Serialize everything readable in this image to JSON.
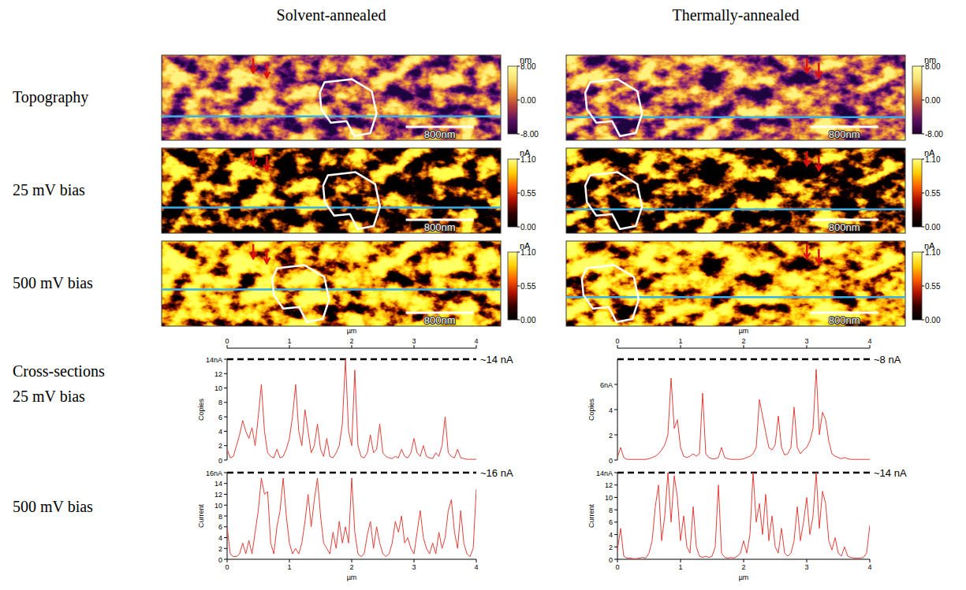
{
  "figure": {
    "columns": [
      "Solvent-annealed",
      "Thermally-annealed"
    ],
    "rows": [
      "Topography",
      "25 mV bias",
      "500 mV bias"
    ],
    "cross_section_title": "Cross-sections",
    "cross_section_rows": [
      "25 mV bias",
      "500 mV bias"
    ],
    "image_width": 4,
    "scale_bar": {
      "label": "800nm",
      "length": 0.8
    },
    "colorbars": [
      {
        "unit": "nm",
        "range": [
          -8,
          8
        ],
        "ticks": [
          {
            "value": 8,
            "label": "8.00"
          },
          {
            "value": 0,
            "label": "0.00"
          },
          {
            "value": -8,
            "label": "-8.00"
          }
        ]
      },
      {
        "unit": "nA",
        "range": [
          0,
          1.1
        ],
        "ticks": [
          {
            "value": 1.1,
            "label": "1.10"
          },
          {
            "value": 0.55,
            "label": "0.55"
          },
          {
            "value": 0,
            "label": "0.00"
          }
        ]
      }
    ]
  },
  "chart_data": [
    {
      "type": "line",
      "color": "#e0403a",
      "xlabel": "µm",
      "ylabel": "Copies",
      "xlim": [
        0,
        4
      ],
      "xticks": [
        0,
        1,
        2,
        3,
        4
      ],
      "ylim": [
        0,
        14
      ],
      "yticks": [
        0,
        2,
        4,
        6,
        8,
        10,
        12,
        {
          "value": 14,
          "label": "14nA"
        }
      ],
      "annotations": [
        {
          "text": "~14 nA",
          "y": 14
        }
      ],
      "x": [
        0,
        0.05,
        0.1,
        0.15,
        0.2,
        0.25,
        0.3,
        0.35,
        0.4,
        0.45,
        0.5,
        0.55,
        0.6,
        0.65,
        0.7,
        0.75,
        0.8,
        0.85,
        0.9,
        0.95,
        1,
        1.05,
        1.1,
        1.15,
        1.2,
        1.25,
        1.3,
        1.35,
        1.4,
        1.45,
        1.5,
        1.55,
        1.6,
        1.65,
        1.7,
        1.75,
        1.8,
        1.85,
        1.9,
        1.95,
        2,
        2.05,
        2.1,
        2.15,
        2.2,
        2.25,
        2.3,
        2.35,
        2.4,
        2.45,
        2.5,
        2.55,
        2.6,
        2.65,
        2.7,
        2.75,
        2.8,
        2.85,
        2.9,
        2.95,
        3,
        3.05,
        3.1,
        3.15,
        3.2,
        3.25,
        3.3,
        3.35,
        3.4,
        3.45,
        3.5,
        3.55,
        3.6,
        3.65,
        3.7,
        3.75,
        3.8,
        3.85,
        3.9,
        3.95,
        4
      ],
      "values": [
        1.5,
        0.3,
        0.5,
        2,
        3.5,
        5.5,
        4,
        3,
        4.5,
        2,
        6,
        10.5,
        4,
        1,
        0.5,
        0.3,
        1.5,
        0.3,
        0.5,
        1.5,
        3,
        6,
        10.5,
        4,
        2,
        7,
        4,
        1,
        2,
        5,
        1.5,
        0.5,
        3,
        0.5,
        0.3,
        1,
        2,
        5,
        14,
        4,
        2,
        12.5,
        2,
        0.5,
        0.3,
        1,
        3.5,
        1,
        1.5,
        5,
        1,
        0.5,
        0.3,
        0.2,
        0.5,
        0.3,
        1.5,
        0.5,
        0.3,
        1,
        3,
        1,
        0.5,
        2,
        0.5,
        0.3,
        0.2,
        1,
        0.5,
        2,
        6,
        1,
        0.5,
        0.3,
        1.5,
        0.3,
        0.2,
        0.1,
        0.1,
        0.1,
        0.1
      ]
    },
    {
      "type": "line",
      "color": "#e0403a",
      "xlabel": "µm",
      "ylabel": "Current",
      "xlim": [
        0,
        4
      ],
      "xticks": [
        0,
        1,
        2,
        3,
        4
      ],
      "ylim": [
        0,
        16
      ],
      "yticks": [
        0,
        2,
        4,
        6,
        8,
        10,
        12,
        14,
        {
          "value": 16,
          "label": "16nA"
        }
      ],
      "annotations": [
        {
          "text": "~16 nA",
          "y": 16
        }
      ],
      "x": [
        0,
        0.05,
        0.1,
        0.15,
        0.2,
        0.25,
        0.3,
        0.35,
        0.4,
        0.45,
        0.5,
        0.55,
        0.6,
        0.65,
        0.7,
        0.75,
        0.8,
        0.85,
        0.9,
        0.95,
        1,
        1.05,
        1.1,
        1.15,
        1.2,
        1.25,
        1.3,
        1.35,
        1.4,
        1.45,
        1.5,
        1.55,
        1.6,
        1.65,
        1.7,
        1.75,
        1.8,
        1.85,
        1.9,
        1.95,
        2,
        2.05,
        2.1,
        2.15,
        2.2,
        2.25,
        2.3,
        2.35,
        2.4,
        2.45,
        2.5,
        2.55,
        2.6,
        2.65,
        2.7,
        2.75,
        2.8,
        2.85,
        2.9,
        2.95,
        3,
        3.05,
        3.1,
        3.15,
        3.2,
        3.25,
        3.3,
        3.35,
        3.4,
        3.45,
        3.5,
        3.55,
        3.6,
        3.65,
        3.7,
        3.75,
        3.8,
        3.85,
        3.9,
        3.95,
        4
      ],
      "values": [
        6,
        1,
        0.5,
        0.5,
        1,
        3,
        1,
        3.5,
        1,
        5,
        9,
        15,
        12,
        12.5,
        3,
        1,
        6,
        9,
        15,
        8,
        3,
        1,
        2,
        1,
        3,
        7,
        12,
        6,
        11,
        15,
        8,
        3,
        2,
        1,
        5,
        2,
        7,
        3,
        6,
        3,
        15,
        5,
        1,
        0.5,
        1,
        4.5,
        7,
        2,
        6,
        3,
        1,
        0.5,
        1,
        3,
        7,
        5,
        8,
        3,
        4,
        2,
        1,
        5,
        9,
        4,
        2,
        1,
        3,
        1,
        5,
        2,
        4,
        9,
        11,
        5,
        2,
        9,
        3,
        1,
        0.5,
        2,
        13
      ]
    },
    {
      "type": "line",
      "color": "#e0403a",
      "xlabel": "µm",
      "ylabel": "Copies",
      "xlim": [
        0,
        4
      ],
      "xticks": [
        0,
        1,
        2,
        3,
        4
      ],
      "ylim": [
        0,
        8
      ],
      "yticks": [
        0,
        2,
        4,
        {
          "value": 6,
          "label": "6nA"
        }
      ],
      "annotations": [
        {
          "text": "~8 nA",
          "y": 8
        }
      ],
      "x": [
        0,
        0.05,
        0.1,
        0.15,
        0.2,
        0.25,
        0.3,
        0.35,
        0.4,
        0.45,
        0.5,
        0.55,
        0.6,
        0.65,
        0.7,
        0.75,
        0.8,
        0.85,
        0.9,
        0.95,
        1,
        1.05,
        1.1,
        1.15,
        1.2,
        1.25,
        1.3,
        1.35,
        1.4,
        1.45,
        1.5,
        1.55,
        1.6,
        1.65,
        1.7,
        1.75,
        1.8,
        1.85,
        1.9,
        1.95,
        2,
        2.05,
        2.1,
        2.15,
        2.2,
        2.25,
        2.3,
        2.35,
        2.4,
        2.45,
        2.5,
        2.55,
        2.6,
        2.65,
        2.7,
        2.75,
        2.8,
        2.85,
        2.9,
        2.95,
        3,
        3.05,
        3.1,
        3.15,
        3.2,
        3.25,
        3.3,
        3.35,
        3.4,
        3.45,
        3.5,
        3.55,
        3.6,
        3.65,
        3.7,
        3.75,
        3.8,
        3.85,
        3.9,
        3.95,
        4
      ],
      "values": [
        0.2,
        1,
        0.2,
        0.05,
        0.05,
        0.05,
        0.05,
        0.05,
        0.05,
        0.05,
        0.1,
        0.2,
        0.3,
        0.5,
        0.8,
        1.2,
        2,
        6.5,
        2.5,
        3.2,
        1,
        0.3,
        0.2,
        0.3,
        0.5,
        0.3,
        0.5,
        5.3,
        0.5,
        0.2,
        0.1,
        0.1,
        0.2,
        1,
        0.2,
        0.1,
        0.05,
        0.05,
        0.05,
        0.05,
        0.1,
        0.2,
        0.3,
        0.5,
        1,
        4.8,
        3.5,
        2.2,
        1,
        0.8,
        1.2,
        3.5,
        1,
        0.4,
        0.5,
        1,
        4.2,
        1,
        0.5,
        0.8,
        1,
        1.5,
        2.5,
        7.2,
        2,
        3.8,
        3.2,
        1.5,
        0.5,
        0.3,
        0.2,
        0.1,
        0.2,
        0.1,
        0.05,
        0.05,
        0.05,
        0.05,
        0.05,
        0.05,
        0.05
      ]
    },
    {
      "type": "line",
      "color": "#e0403a",
      "xlabel": "µm",
      "ylabel": "Current",
      "xlim": [
        0,
        4
      ],
      "xticks": [
        0,
        1,
        2,
        3,
        4
      ],
      "ylim": [
        0,
        14
      ],
      "yticks": [
        0,
        2,
        4,
        6,
        8,
        10,
        12,
        {
          "value": 14,
          "label": "14nA"
        }
      ],
      "annotations": [
        {
          "text": "~14 nA",
          "y": 14
        }
      ],
      "x": [
        0,
        0.05,
        0.1,
        0.15,
        0.2,
        0.25,
        0.3,
        0.35,
        0.4,
        0.45,
        0.5,
        0.55,
        0.6,
        0.65,
        0.7,
        0.75,
        0.8,
        0.85,
        0.9,
        0.95,
        1,
        1.05,
        1.1,
        1.15,
        1.2,
        1.25,
        1.3,
        1.35,
        1.4,
        1.45,
        1.5,
        1.55,
        1.6,
        1.65,
        1.7,
        1.75,
        1.8,
        1.85,
        1.9,
        1.95,
        2,
        2.05,
        2.1,
        2.15,
        2.2,
        2.25,
        2.3,
        2.35,
        2.4,
        2.45,
        2.5,
        2.55,
        2.6,
        2.65,
        2.7,
        2.75,
        2.8,
        2.85,
        2.9,
        2.95,
        3,
        3.05,
        3.1,
        3.15,
        3.2,
        3.25,
        3.3,
        3.35,
        3.4,
        3.45,
        3.5,
        3.55,
        3.6,
        3.65,
        3.7,
        3.75,
        3.8,
        3.85,
        3.9,
        3.95,
        4
      ],
      "values": [
        1.5,
        5,
        0.5,
        0.2,
        0.2,
        0.1,
        0.1,
        0.2,
        0.3,
        0.2,
        1,
        3,
        8.5,
        12,
        3,
        7,
        14,
        6,
        13.5,
        10,
        3,
        7,
        2,
        1,
        8.5,
        2,
        0.5,
        0.3,
        0.5,
        0.3,
        0.5,
        2,
        12,
        1,
        0.3,
        0.2,
        0.3,
        0.2,
        0.5,
        1,
        3,
        1,
        4,
        14,
        6,
        9,
        4,
        10.5,
        3,
        7,
        2,
        1,
        5,
        1,
        0.5,
        1,
        3,
        8.5,
        3,
        6,
        10,
        4,
        7,
        14,
        5,
        11,
        9,
        3,
        1.5,
        3.5,
        1,
        0.5,
        2,
        0.5,
        0.3,
        0.2,
        0.2,
        0.2,
        0.3,
        1,
        5.5
      ]
    }
  ]
}
